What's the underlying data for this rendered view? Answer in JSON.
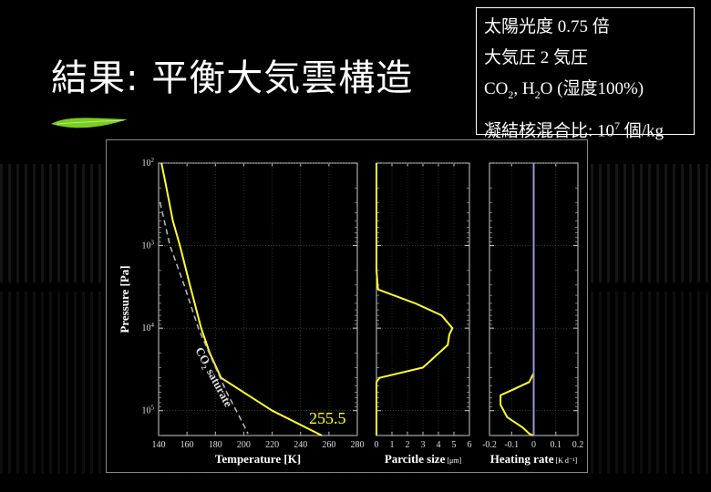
{
  "slide": {
    "title": "結果: 平衡大気雲構造"
  },
  "infobox": {
    "line1": "太陽光度  0.75 倍",
    "line2": "大気圧 2 気圧",
    "line3_a": "CO",
    "line3_sub1": "2",
    "line3_b": ", H",
    "line3_sub2": "2",
    "line3_c": "O (湿度100%)",
    "line4_a": "凝結核混合比: 10",
    "line4_sup": "7",
    "line4_b": " 個/kg"
  },
  "chart_data": [
    {
      "type": "line",
      "xlabel": "Temperature [K]",
      "ylabel": "Pressure [Pa]",
      "xlim": [
        140,
        280
      ],
      "ylim": [
        200000,
        100
      ],
      "yscale": "log",
      "x_ticks": [
        140,
        160,
        180,
        200,
        220,
        240,
        260,
        280
      ],
      "y_ticks": [
        {
          "value": 100,
          "base": "10",
          "exp": "2"
        },
        {
          "value": 1000,
          "base": "10",
          "exp": "3"
        },
        {
          "value": 10000,
          "base": "10",
          "exp": "4"
        },
        {
          "value": 100000,
          "base": "10",
          "exp": "5"
        }
      ],
      "series": [
        {
          "color": "#ffff33",
          "style": "solid",
          "x": [
            142,
            145,
            150,
            155,
            162,
            170,
            176,
            184,
            220,
            255
          ],
          "y": [
            100,
            180,
            500,
            1000,
            3000,
            10000,
            20000,
            40000,
            100000,
            200000
          ]
        },
        {
          "color": "#bbbbbb",
          "style": "dashed",
          "x": [
            141,
            148,
            158,
            168,
            178,
            188,
            196,
            203
          ],
          "y": [
            300,
            1000,
            3000,
            10000,
            25000,
            60000,
            110000,
            190000
          ]
        }
      ],
      "annotations": [
        {
          "text": "255.5",
          "color": "#ffff33"
        },
        {
          "text_a": "CO",
          "sub": "2",
          "text_b": " saturate",
          "color": "#dddddd"
        }
      ]
    },
    {
      "type": "line",
      "xlabel": "Parcitle size",
      "xunit": "[μm]",
      "xlim": [
        0,
        6
      ],
      "ylim": [
        200000,
        100
      ],
      "yscale": "log",
      "x_ticks": [
        0,
        1,
        2,
        3,
        4,
        5,
        6
      ],
      "series": [
        {
          "color": "#ffff33",
          "style": "solid",
          "x": [
            0,
            0,
            0.1,
            2.5,
            4.2,
            4.9,
            4.7,
            4.6,
            3.0,
            0.2,
            0,
            0
          ],
          "y": [
            100,
            2000,
            3400,
            5000,
            7000,
            10000,
            12000,
            16000,
            30000,
            40000,
            45000,
            200000
          ]
        }
      ]
    },
    {
      "type": "line",
      "xlabel": "Heating rate",
      "xunit": "[K d⁻¹]",
      "xlim": [
        -0.2,
        0.2
      ],
      "ylim": [
        200000,
        100
      ],
      "yscale": "log",
      "x_ticks": [
        -0.2,
        -0.1,
        0,
        0.1,
        0.2
      ],
      "x_tick_labels": [
        "-0.2",
        "-0.1",
        "0",
        "0.1",
        "0.2"
      ],
      "series": [
        {
          "color": "#ffff33",
          "style": "solid",
          "x": [
            0,
            0,
            -0.02,
            -0.09,
            -0.15,
            -0.15,
            -0.12,
            -0.05,
            -0.02,
            0
          ],
          "y": [
            100,
            35000,
            45000,
            55000,
            65000,
            85000,
            120000,
            160000,
            190000,
            200000
          ]
        },
        {
          "color": "#9999cc",
          "style": "solid",
          "x": [
            0,
            0
          ],
          "y": [
            100,
            200000
          ]
        }
      ]
    }
  ]
}
